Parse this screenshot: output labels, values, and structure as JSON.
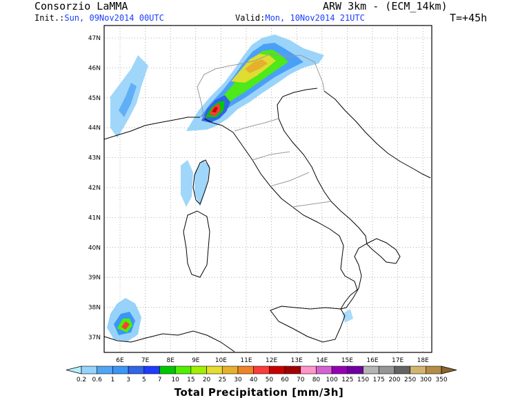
{
  "header": {
    "org": "Consorzio LaMMA",
    "init_label": "Init.:",
    "init_value": "Sun, 09Nov2014 00UTC",
    "model": "ARW 3km - (ECM_14km)",
    "valid_label": "Valid:",
    "valid_value": "Mon, 10Nov2014 21UTC",
    "lead": "T=+45h"
  },
  "map": {
    "lat_labels": [
      "47N",
      "46N",
      "45N",
      "44N",
      "43N",
      "42N",
      "41N",
      "40N",
      "39N",
      "38N",
      "37N"
    ],
    "lon_labels": [
      "6E",
      "7E",
      "8E",
      "9E",
      "10E",
      "11E",
      "12E",
      "13E",
      "14E",
      "15E",
      "16E",
      "17E",
      "18E"
    ],
    "grid": "dotted",
    "coast_color": "#000000",
    "border_color": "#999999",
    "precip_areas": [
      {
        "region": "north-west alps / liguria band",
        "max_level": "40"
      },
      {
        "region": "liguria coast core",
        "max_level": "60"
      },
      {
        "region": "sicily west",
        "max_level": "30"
      }
    ]
  },
  "legend": {
    "title": "Total Precipitation [mm/3h]",
    "levels": [
      "0.2",
      "0.6",
      "1",
      "3",
      "5",
      "7",
      "10",
      "15",
      "20",
      "25",
      "30",
      "40",
      "50",
      "60",
      "70",
      "80",
      "100",
      "125",
      "150",
      "175",
      "200",
      "250",
      "300",
      "350"
    ],
    "colors": [
      "#b4f0fa",
      "#96d2fa",
      "#50a5f5",
      "#3c96f5",
      "#3264e6",
      "#1e3cff",
      "#00c800",
      "#50f000",
      "#a0f000",
      "#e6dc32",
      "#e6af2d",
      "#f08228",
      "#fa3c3c",
      "#c80000",
      "#a00000",
      "#ff96c8",
      "#d264d2",
      "#9600b4",
      "#6e00a0",
      "#b4b4b4",
      "#969696",
      "#646464",
      "#d2b46e",
      "#b48c46",
      "#8c642d"
    ]
  }
}
